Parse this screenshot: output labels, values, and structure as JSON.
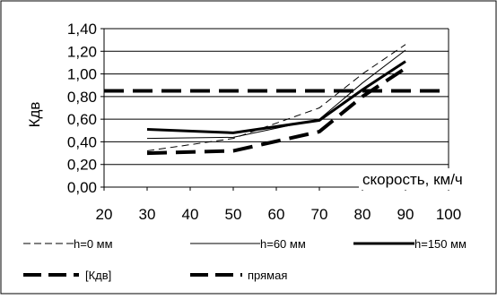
{
  "chart_data": {
    "type": "line",
    "title": "",
    "xlabel": "скорость, км/ч",
    "ylabel": "Кдв",
    "xlim": [
      20,
      100
    ],
    "ylim": [
      0,
      1.4
    ],
    "x_ticks": [
      "20",
      "30",
      "40",
      "50",
      "60",
      "70",
      "80",
      "90",
      "100"
    ],
    "y_ticks": [
      "0,00",
      "0,20",
      "0,40",
      "0,60",
      "0,80",
      "1,00",
      "1,20",
      "1,40"
    ],
    "grid": "horizontal",
    "legend_position": "bottom",
    "series": [
      {
        "name": "h=0 мм",
        "style": "thin-dashed",
        "color": "#000000",
        "x": [
          30,
          50,
          70,
          80,
          90
        ],
        "y": [
          0.32,
          0.43,
          0.7,
          1.0,
          1.26
        ]
      },
      {
        "name": "h=60 мм",
        "style": "thin-solid",
        "color": "#000000",
        "x": [
          30,
          50,
          70,
          80,
          90
        ],
        "y": [
          0.43,
          0.44,
          0.6,
          0.92,
          1.21
        ]
      },
      {
        "name": "h=150 мм",
        "style": "thick-solid",
        "color": "#000000",
        "x": [
          30,
          50,
          70,
          80,
          90
        ],
        "y": [
          0.51,
          0.48,
          0.59,
          0.86,
          1.11
        ]
      },
      {
        "name": "[Кдв]",
        "style": "thick-dashed",
        "color": "#000000",
        "x": [
          20,
          100
        ],
        "y": [
          0.85,
          0.85
        ]
      },
      {
        "name": "прямая",
        "style": "thick-dashed",
        "color": "#000000",
        "x": [
          30,
          50,
          70,
          80,
          90
        ],
        "y": [
          0.3,
          0.32,
          0.49,
          0.8,
          1.05
        ]
      }
    ]
  }
}
